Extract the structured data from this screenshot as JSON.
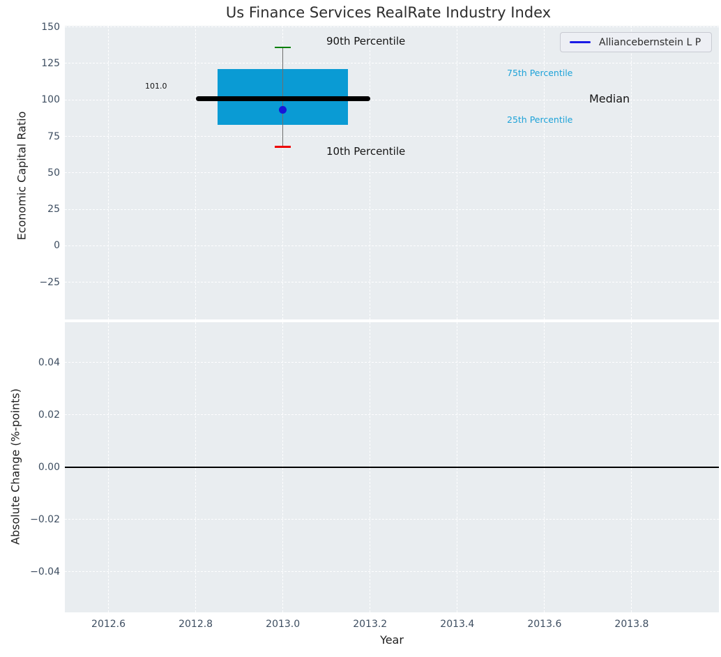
{
  "title": "Us Finance Services RealRate Industry Index",
  "legend": {
    "label": "Alliancebernstein L P"
  },
  "colors": {
    "axes_bg": "#e9edf0",
    "grid": "#ffffff",
    "box_fill": "#0a9bd4",
    "median_line": "#000000",
    "whisker": "#6e6e6e",
    "cap_90th": "#008000",
    "cap_10th": "#ee0000",
    "company_dot": "#1616d9",
    "legend_line": "#1a1ae6",
    "percentile_label_blue": "#1da2d8",
    "tick_label": "#3d4d60",
    "zero_line": "#000000"
  },
  "annotations": {
    "p90_label": "90th Percentile",
    "p75_label": "75th Percentile",
    "median_label": "Median",
    "p25_label": "25th Percentile",
    "p10_label": "10th Percentile",
    "median_value_label": "101.0"
  },
  "chart_data": [
    {
      "type": "box",
      "title": "Us Finance Services RealRate Industry Index",
      "ylabel": "Economic Capital Ratio",
      "xlabel": "",
      "xlim": [
        2012.5,
        2014.0
      ],
      "ylim": [
        -50.5,
        150.8
      ],
      "grid": true,
      "xticks": [
        2012.6,
        2012.8,
        2013.0,
        2013.2,
        2013.4,
        2013.6,
        2013.8
      ],
      "xticklabels": [
        "2012.6",
        "2012.8",
        "2013.0",
        "2013.2",
        "2013.4",
        "2013.6",
        "2013.8"
      ],
      "yticks": [
        150,
        125,
        100,
        75,
        50,
        25,
        0,
        -25
      ],
      "yticklabels": [
        "150",
        "125",
        "100",
        "75",
        "50",
        "25",
        "0",
        "−25"
      ],
      "x": 2013.0,
      "box": {
        "p90": 136,
        "p75": 121,
        "median": 101.0,
        "p25": 83,
        "p10": 68,
        "company_value": 93.4,
        "box_x_range": [
          2012.85,
          2013.15
        ],
        "median_x_range": [
          2012.8,
          2013.2
        ],
        "cap_half_width_years": 0.018
      },
      "series": [
        {
          "name": "Alliancebernstein L P",
          "x": [
            2013.0
          ],
          "y": [
            93.4
          ]
        }
      ],
      "legend_position": "upper right"
    },
    {
      "type": "line",
      "ylabel": "Absolute Change (%-points)",
      "xlabel": "Year",
      "xlim": [
        2012.5,
        2014.0
      ],
      "ylim": [
        -0.0556,
        0.0554
      ],
      "grid": true,
      "xticks": [
        2012.6,
        2012.8,
        2013.0,
        2013.2,
        2013.4,
        2013.6,
        2013.8
      ],
      "xticklabels": [
        "2012.6",
        "2012.8",
        "2013.0",
        "2013.2",
        "2013.4",
        "2013.6",
        "2013.8"
      ],
      "yticks": [
        0.04,
        0.02,
        0.0,
        -0.02,
        -0.04
      ],
      "yticklabels": [
        "0.04",
        "0.02",
        "0.00",
        "−0.02",
        "−0.04"
      ],
      "zero_line_y": 0.0,
      "series": []
    }
  ]
}
